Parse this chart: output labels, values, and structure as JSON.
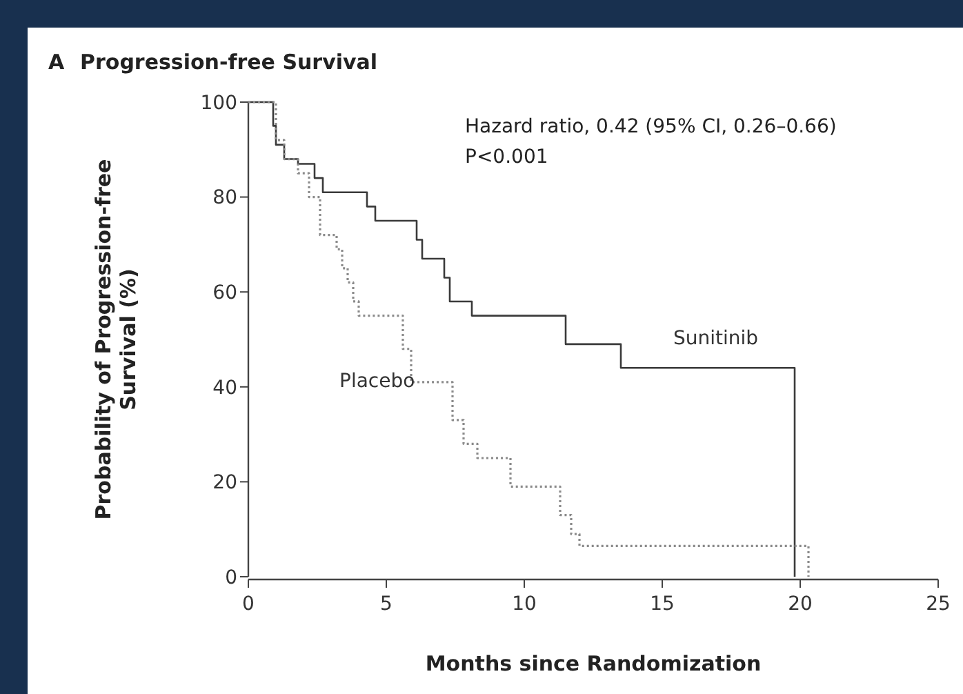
{
  "chart_data": {
    "type": "step",
    "title": "Progression-free Survival",
    "xlabel": "Months since Randomization",
    "ylabel": "Probability of Progression-free Survival (%)",
    "annotations": [
      "A",
      "Hazard ratio, 0.42 (95% CI, 0.26–0.66)",
      "P<0.001"
    ],
    "series": [
      {
        "name": "Sunitinib",
        "color": "#3a3a3a",
        "line_style": "solid",
        "x": [
          0,
          0.8,
          0.9,
          1.0,
          1.3,
          1.8,
          2.4,
          2.7,
          4.0,
          4.3,
          4.6,
          5.8,
          6.1,
          6.3,
          7.1,
          7.3,
          8.1,
          11.0,
          11.5,
          13.5,
          19.8,
          19.8
        ],
        "values": [
          100,
          100,
          95,
          91,
          88,
          87,
          84,
          81,
          81,
          78,
          75,
          75,
          71,
          67,
          63,
          58,
          55,
          55,
          49,
          44,
          44,
          0
        ]
      },
      {
        "name": "Placebo",
        "color": "#8a8a8a",
        "line_style": "dotted",
        "x": [
          0,
          0.8,
          1.0,
          1.3,
          1.8,
          2.2,
          2.6,
          3.2,
          3.4,
          3.6,
          3.8,
          4.0,
          5.3,
          5.6,
          5.9,
          7.2,
          7.4,
          7.8,
          8.3,
          9.5,
          10.7,
          11.3,
          11.7,
          12.0,
          20.1,
          20.3
        ],
        "values": [
          100,
          100,
          92,
          88,
          85,
          80,
          72,
          69,
          65,
          62,
          58,
          55,
          55,
          48,
          41,
          41,
          33,
          28,
          25,
          19,
          19,
          13,
          9,
          6.5,
          6.5,
          0
        ]
      }
    ],
    "xlim": [
      0,
      25
    ],
    "xticks": [
      0,
      5,
      10,
      15,
      20,
      25
    ],
    "ylim": [
      0,
      100
    ],
    "yticks": [
      0,
      20,
      40,
      60,
      80,
      100
    ],
    "grid": false
  }
}
